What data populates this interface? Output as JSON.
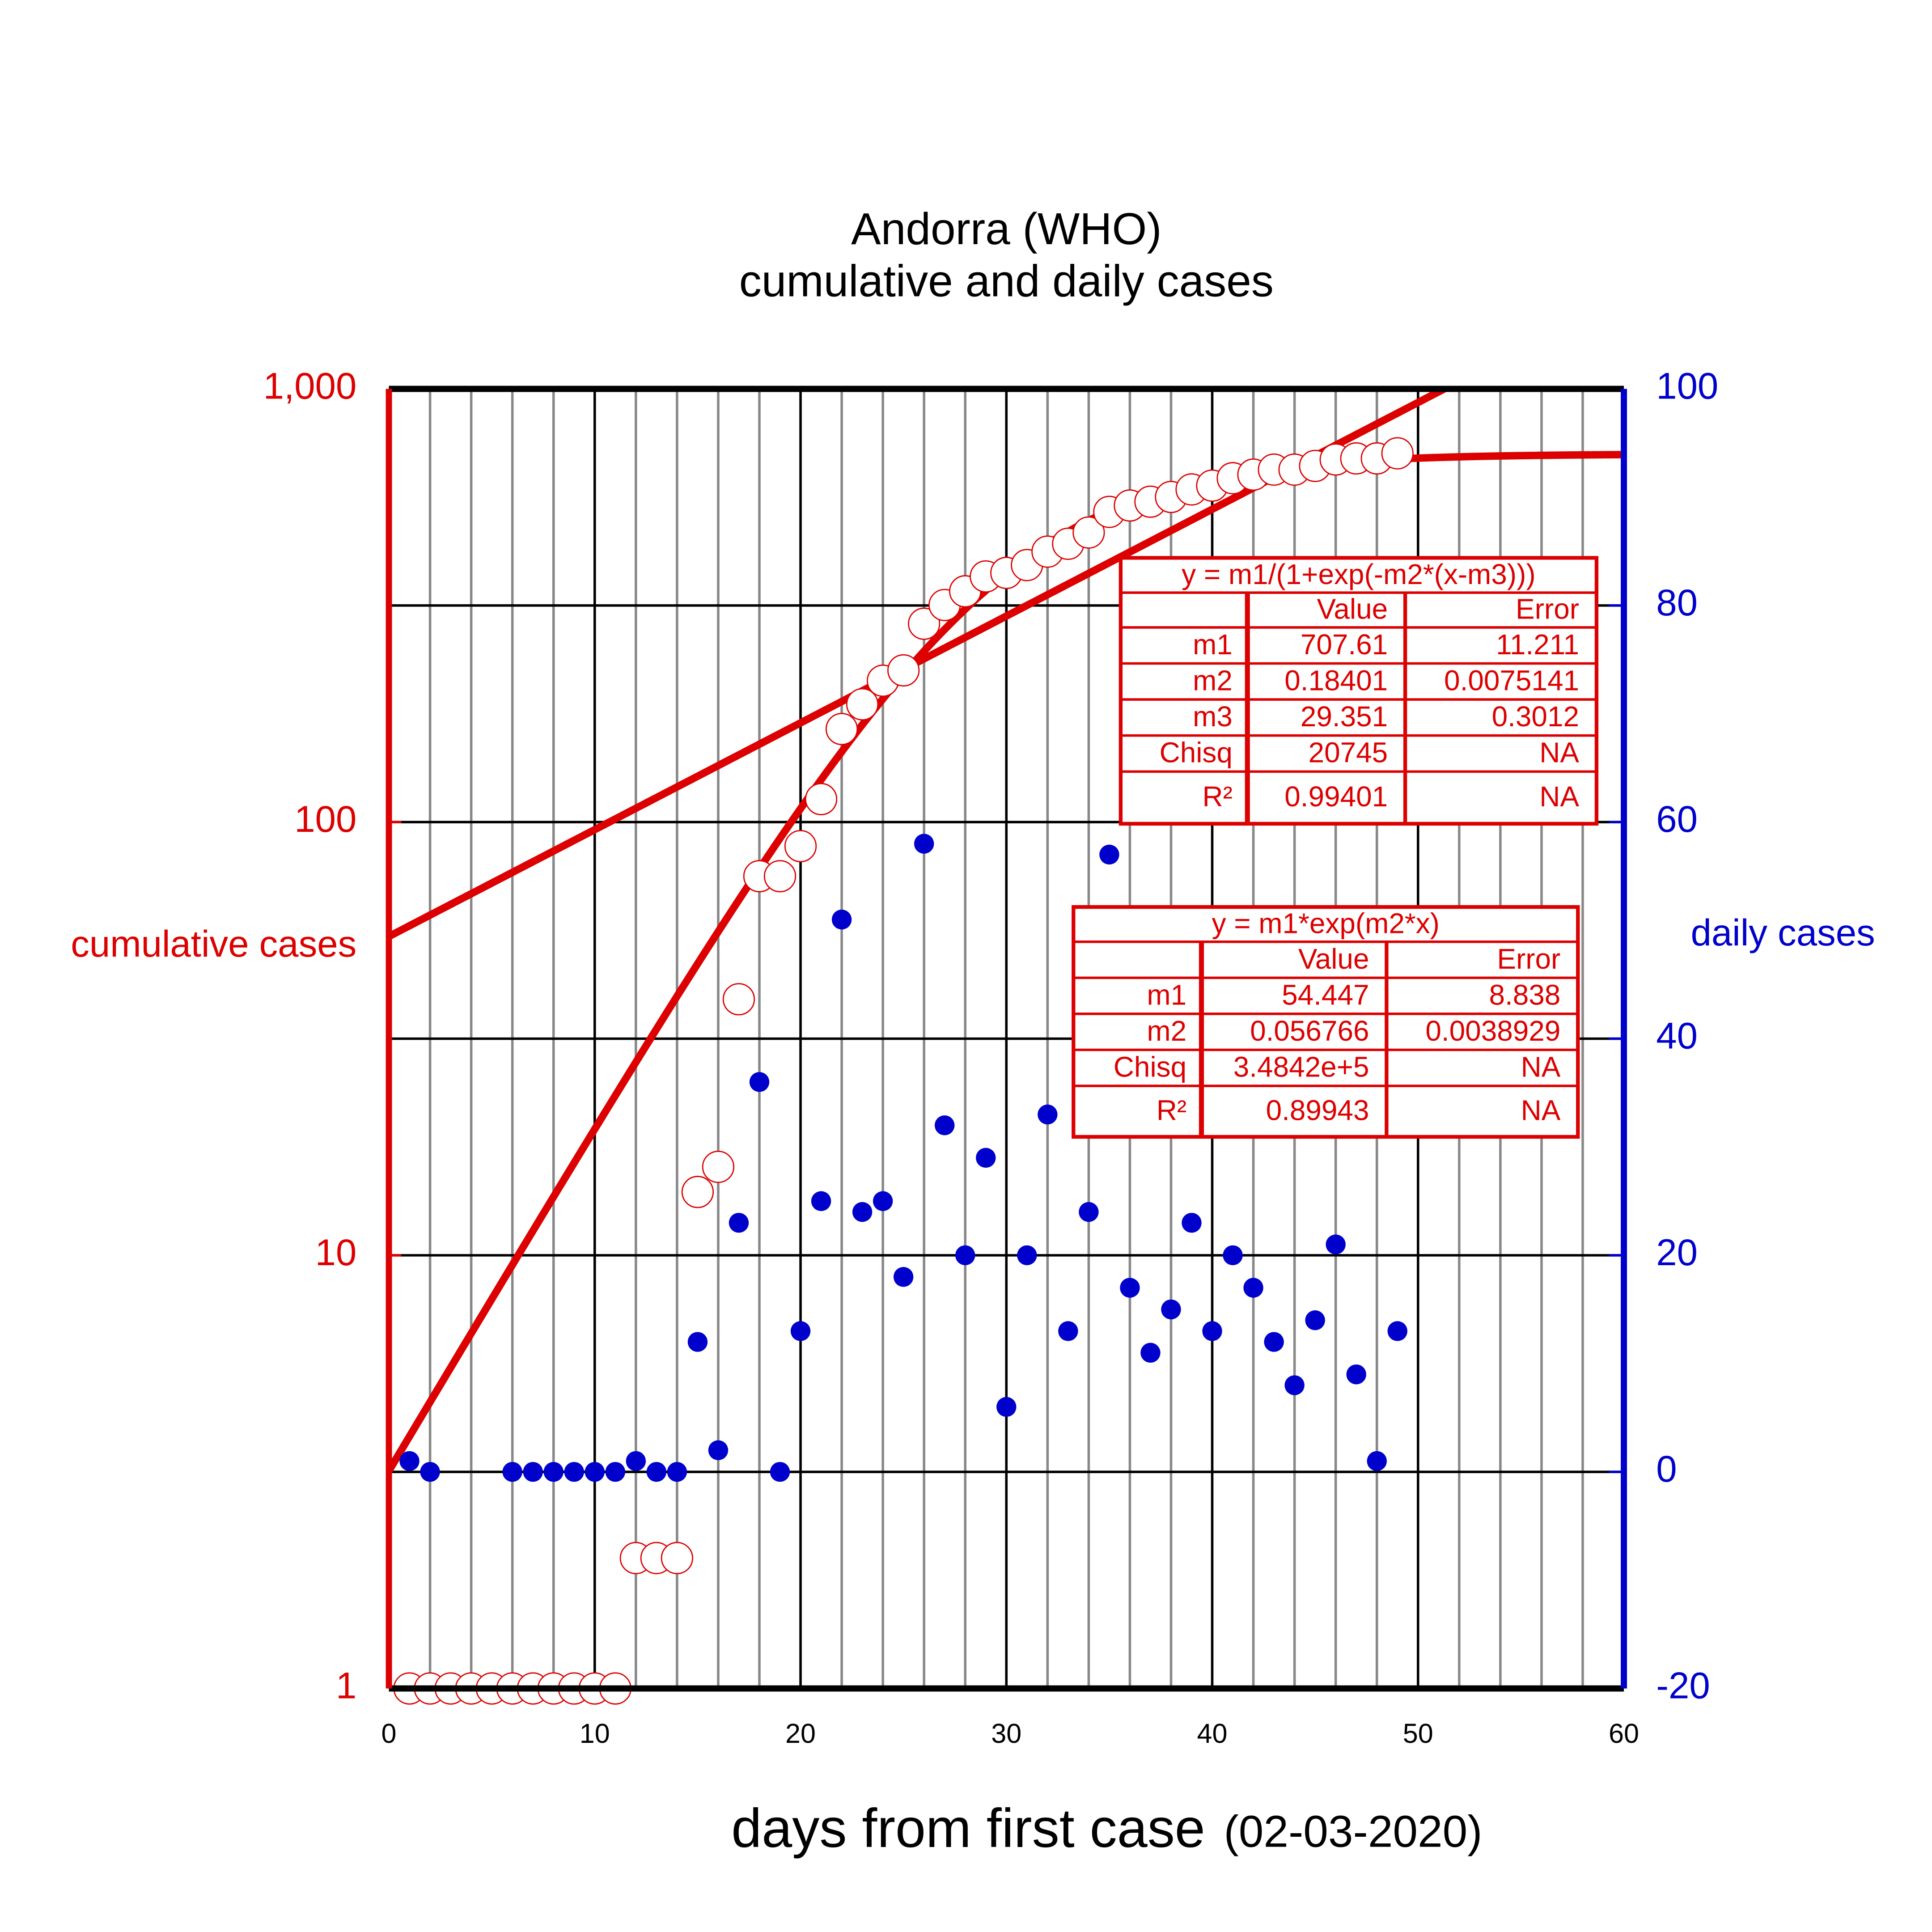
{
  "chart_data": {
    "type": "scatter",
    "title": "Andorra (WHO)",
    "subtitle": "cumulative and daily cases",
    "xlabel": "days from first case",
    "xlabel_note": "(02-03-2020)",
    "ylabel": "cumulative cases",
    "y2label": "daily cases",
    "xlim": [
      0,
      60
    ],
    "xticks": [
      0,
      10,
      20,
      30,
      40,
      50,
      60
    ],
    "minor_grid_step": 2,
    "ylim": [
      1,
      1000
    ],
    "log_y": true,
    "yticks": [
      1,
      10,
      100,
      {
        "value": 1000,
        "label": "1,000"
      }
    ],
    "y2lim": [
      -20,
      100
    ],
    "y2ticks": [
      -20,
      0,
      20,
      40,
      60,
      80,
      100
    ],
    "grid": true,
    "series": [
      {
        "color": "#dd0000",
        "marker": "open-circle",
        "x": [
          1,
          2,
          3,
          4,
          5,
          6,
          7,
          8,
          9,
          10,
          11,
          12,
          13,
          14,
          15,
          16,
          17,
          18,
          19,
          20,
          21,
          22,
          23,
          24,
          25,
          26,
          27,
          28,
          29,
          30,
          31,
          32,
          33,
          34,
          35,
          36,
          37,
          38,
          39,
          40,
          41,
          42,
          43,
          44,
          45,
          46,
          47,
          48,
          49
        ],
        "values": [
          1,
          1,
          1,
          1,
          1,
          1,
          1,
          1,
          1,
          1,
          1,
          2,
          2,
          2,
          14,
          16,
          39,
          75,
          75,
          88,
          113,
          164,
          187,
          212,
          224,
          287,
          317,
          341,
          369,
          376,
          392,
          421,
          439,
          466,
          520,
          538,
          549,
          563,
          586,
          598,
          622,
          634,
          651,
          651,
          664,
          687,
          691,
          691,
          710
        ]
      },
      {
        "color": "#0000cc",
        "marker": "dot",
        "axis": "y2",
        "x": [
          1,
          2,
          6,
          7,
          8,
          9,
          10,
          11,
          12,
          13,
          14,
          15,
          16,
          17,
          18,
          19,
          20,
          21,
          22,
          23,
          24,
          25,
          26,
          27,
          28,
          29,
          30,
          31,
          32,
          33,
          34,
          35,
          36,
          37,
          38,
          39,
          40,
          41,
          42,
          43,
          44,
          45,
          46,
          47,
          48,
          49
        ],
        "values": [
          1,
          0,
          0,
          0,
          0,
          0,
          0,
          0,
          1,
          0,
          0,
          12,
          2,
          23,
          36,
          0,
          13,
          25,
          51,
          24,
          25,
          18,
          58,
          32,
          20,
          29,
          6,
          20,
          33,
          13,
          24,
          57,
          17,
          11,
          15,
          23,
          13,
          20,
          17,
          12,
          8,
          14,
          21,
          9,
          1,
          13
        ]
      }
    ],
    "fits": [
      {
        "formula": "y = m1/(1+exp(-m2*(x-m3)))",
        "color": "#dd0000",
        "header": [
          "Value",
          "Error"
        ],
        "rows": [
          {
            "name": "m1",
            "value": 707.61,
            "error": 11.211
          },
          {
            "name": "m2",
            "value": 0.18401,
            "error": 0.0075141
          },
          {
            "name": "m3",
            "value": 29.351,
            "error": 0.3012
          },
          {
            "name": "Chisq",
            "value": 20745,
            "error": "NA"
          },
          {
            "name": "R²",
            "value": 0.99401,
            "error": "NA"
          }
        ]
      },
      {
        "formula": "y = m1*exp(m2*x)",
        "color": "#dd0000",
        "header": [
          "Value",
          "Error"
        ],
        "rows": [
          {
            "name": "m1",
            "value": 54.447,
            "error": 8.838
          },
          {
            "name": "m2",
            "value": 0.056766,
            "error": 0.0038929
          },
          {
            "name": "Chisq",
            "value": {
              "value": 348420,
              "label": "3.4842e+5"
            },
            "error": "NA"
          },
          {
            "name": "R²",
            "value": 0.89943,
            "error": "NA"
          }
        ]
      }
    ]
  }
}
